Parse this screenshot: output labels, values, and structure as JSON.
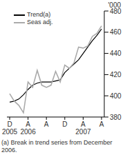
{
  "chart_data": {
    "type": "line",
    "y_label": "'000",
    "annotations": [
      "(a) Break in trend series from December 2006."
    ],
    "categories": [
      "D 2005",
      null,
      null,
      null,
      "A 2006",
      null,
      null,
      null,
      "A",
      null,
      null,
      null,
      "D",
      null,
      null,
      null,
      "A 2007",
      null,
      null,
      null,
      "A"
    ],
    "series": [
      {
        "name": "Trend(a)",
        "color": "#000000",
        "values": [
          394,
          395,
          397,
          401,
          406,
          410,
          412,
          413,
          413,
          413,
          414,
          415,
          422,
          426,
          430,
          434,
          440,
          446,
          452,
          457,
          463
        ]
      },
      {
        "name": "Seas adj.",
        "color": "#aaaaaa",
        "values": [
          402,
          395,
          391,
          384,
          413,
          408,
          424,
          410,
          408,
          410,
          423,
          413,
          429,
          426,
          431,
          446,
          445,
          447,
          456,
          459,
          466
        ]
      }
    ],
    "ylim": [
      380,
      480
    ],
    "yticks": [
      380,
      400,
      420,
      440,
      460,
      480
    ],
    "grid": false,
    "legend": "top-left"
  }
}
